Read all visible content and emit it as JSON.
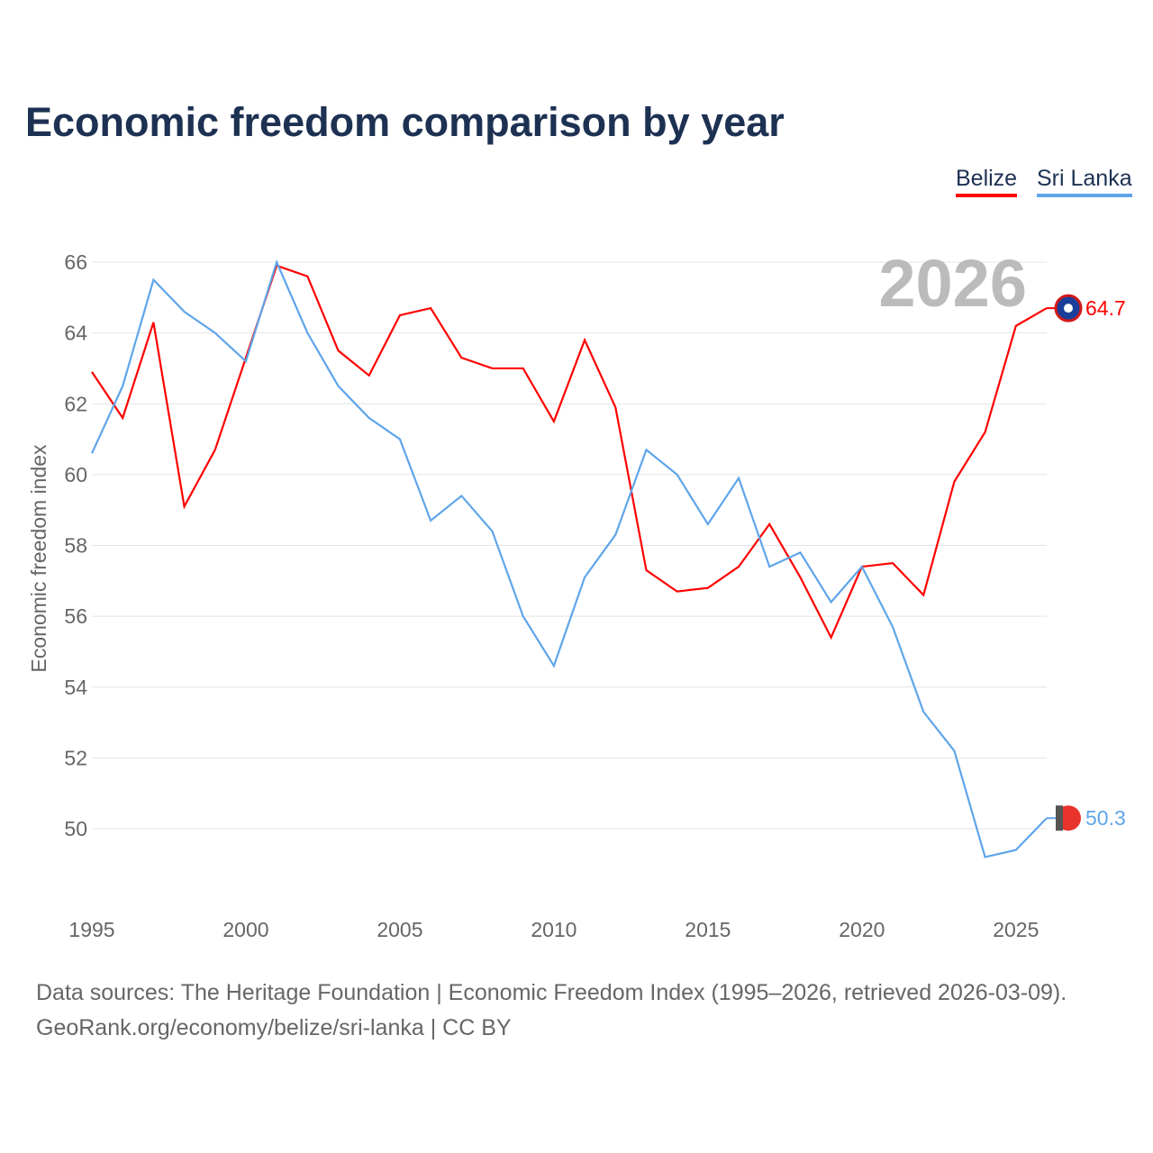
{
  "title": "Economic freedom comparison by year",
  "legend": [
    {
      "label": "Belize",
      "color": "#ff0000"
    },
    {
      "label": "Sri Lanka",
      "color": "#5fa5ea"
    }
  ],
  "footer": {
    "line1": "Data sources: The Heritage Foundation | Economic Freedom Index (1995–2026, retrieved 2026-03-09).",
    "line2": "GeoRank.org/economy/belize/sri-lanka | CC BY"
  },
  "chart_data": {
    "type": "line",
    "title": "Economic freedom comparison by year",
    "xlabel": "",
    "ylabel": "Economic freedom index",
    "year_label": "2026",
    "x": [
      1995,
      1996,
      1997,
      1998,
      1999,
      2000,
      2001,
      2002,
      2003,
      2004,
      2005,
      2006,
      2007,
      2008,
      2009,
      2010,
      2011,
      2012,
      2013,
      2014,
      2015,
      2016,
      2017,
      2018,
      2019,
      2020,
      2021,
      2022,
      2023,
      2024,
      2025,
      2026
    ],
    "xlim": [
      1995,
      2026
    ],
    "ylim": [
      48,
      66
    ],
    "xticks": [
      "1995",
      "2000",
      "2005",
      "2010",
      "2015",
      "2020",
      "2025"
    ],
    "yticks": [
      "50",
      "52",
      "54",
      "56",
      "58",
      "60",
      "62",
      "64",
      "66"
    ],
    "grid": true,
    "legend_position": "top-right",
    "series": [
      {
        "name": "Belize",
        "color": "#ff0000",
        "end_label": "64.7",
        "values": [
          62.9,
          61.6,
          64.3,
          59.1,
          60.7,
          63.3,
          65.9,
          65.6,
          63.5,
          62.8,
          64.5,
          64.7,
          63.3,
          63.0,
          63.0,
          61.5,
          63.8,
          61.9,
          57.3,
          56.7,
          56.8,
          57.4,
          58.6,
          57.1,
          55.4,
          57.4,
          57.5,
          56.6,
          59.8,
          61.2,
          64.2,
          64.7
        ]
      },
      {
        "name": "Sri Lanka",
        "color": "#5fa5ea",
        "end_label": "50.3",
        "values": [
          60.6,
          62.5,
          65.5,
          64.6,
          64.0,
          63.2,
          66.0,
          64.0,
          62.5,
          61.6,
          61.0,
          58.7,
          59.4,
          58.4,
          56.0,
          54.6,
          57.1,
          58.3,
          60.7,
          60.0,
          58.6,
          59.9,
          57.4,
          57.8,
          56.4,
          57.4,
          55.7,
          53.3,
          52.2,
          49.2,
          49.4,
          50.3
        ]
      }
    ]
  }
}
